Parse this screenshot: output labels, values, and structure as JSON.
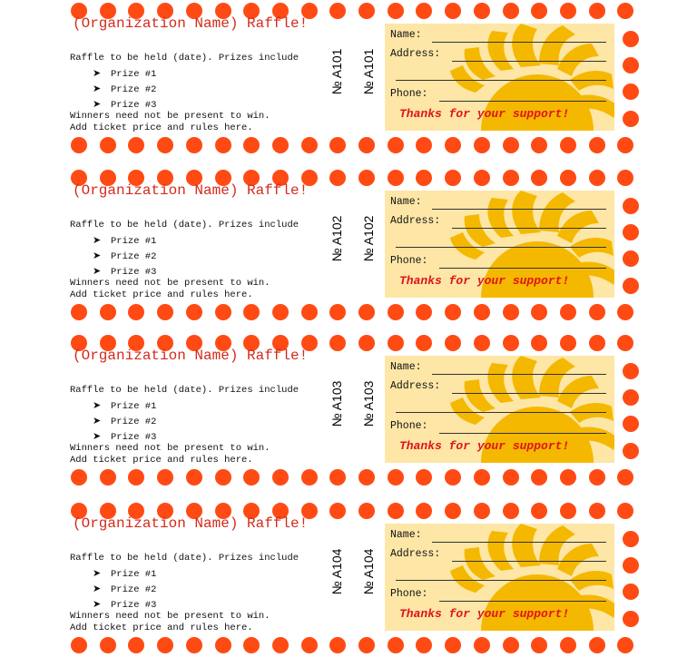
{
  "colors": {
    "dot": "#ff4a14",
    "title": "#d42a1c",
    "stub_bg": "#fde6a6",
    "sun": "#f5b800",
    "thanks": "#e0141a"
  },
  "icons": {
    "bullet": "arrowhead-bullet-icon",
    "decor": "sun-icon",
    "perforation": "dot-icon"
  },
  "tickets": [
    {
      "title": "(Organization Name) Raffle!",
      "intro": "Raffle to be held (date). Prizes include",
      "prizes": [
        "Prize #1",
        "Prize #2",
        "Prize #3"
      ],
      "winners_note": "Winners need not be present to win.",
      "rules_note": "Add ticket price and rules here.",
      "number": "№ A101",
      "stub": {
        "name_label": "Name:",
        "address_label": "Address:",
        "phone_label": "Phone:",
        "thanks": "Thanks for your support!"
      }
    },
    {
      "title": "(Organization Name) Raffle!",
      "intro": "Raffle to be held (date). Prizes include",
      "prizes": [
        "Prize #1",
        "Prize #2",
        "Prize #3"
      ],
      "winners_note": "Winners need not be present to win.",
      "rules_note": "Add ticket price and rules here.",
      "number": "№ A102",
      "stub": {
        "name_label": "Name:",
        "address_label": "Address:",
        "phone_label": "Phone:",
        "thanks": "Thanks for your support!"
      }
    },
    {
      "title": "(Organization Name) Raffle!",
      "intro": "Raffle to be held (date). Prizes include",
      "prizes": [
        "Prize #1",
        "Prize #2",
        "Prize #3"
      ],
      "winners_note": "Winners need not be present to win.",
      "rules_note": "Add ticket price and rules here.",
      "number": "№ A103",
      "stub": {
        "name_label": "Name:",
        "address_label": "Address:",
        "phone_label": "Phone:",
        "thanks": "Thanks for your support!"
      }
    },
    {
      "title": "(Organization Name) Raffle!",
      "intro": "Raffle to be held (date). Prizes include",
      "prizes": [
        "Prize #1",
        "Prize #2",
        "Prize #3"
      ],
      "winners_note": "Winners need not be present to win.",
      "rules_note": "Add ticket price and rules here.",
      "number": "№ A104",
      "stub": {
        "name_label": "Name:",
        "address_label": "Address:",
        "phone_label": "Phone:",
        "thanks": "Thanks for your support!"
      }
    }
  ]
}
